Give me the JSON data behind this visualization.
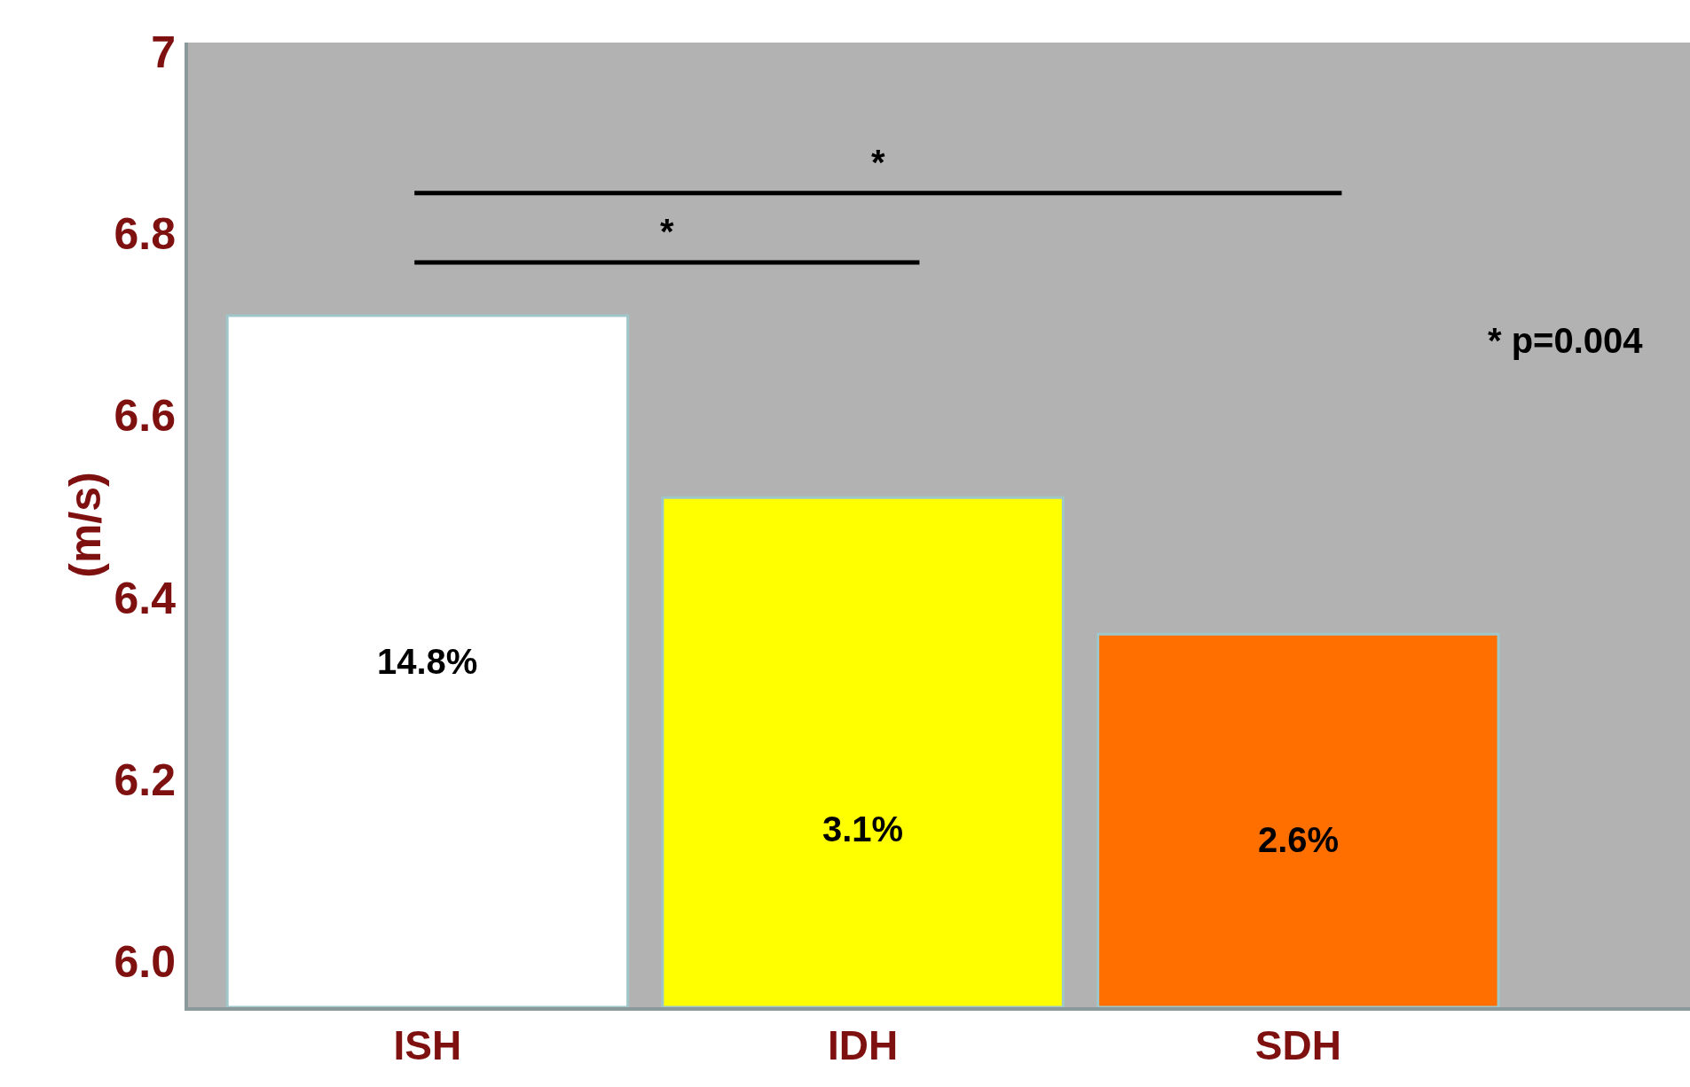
{
  "chart_data": {
    "type": "bar",
    "ylabel": "(m/s)",
    "categories": [
      "ISH",
      "IDH",
      "SDH"
    ],
    "values": [
      6.71,
      6.51,
      6.36
    ],
    "colors": [
      "#ffffff",
      "#ffff00",
      "#ff6f00"
    ],
    "ylim": [
      5.95,
      7.01
    ],
    "yticks": [
      {
        "value": 6,
        "label": "6.0"
      },
      6.2,
      6.4,
      6.6,
      6.8,
      7
    ],
    "grid": false,
    "annotations": [
      "14.8%",
      "3.1%",
      "2.6%",
      "*",
      "*",
      "* p=0.004"
    ]
  }
}
